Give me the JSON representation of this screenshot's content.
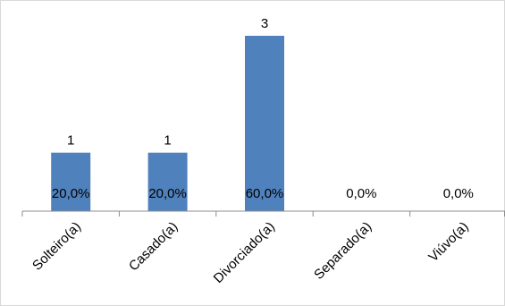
{
  "chart_data": {
    "type": "bar",
    "categories": [
      "Solteiro(a)",
      "Casado(a)",
      "Divorciado(a)",
      "Separado(a)",
      "Viúvo(a)"
    ],
    "values": [
      1,
      1,
      3,
      0,
      0
    ],
    "percent_labels": [
      "20,0%",
      "20,0%",
      "60,0%",
      "0,0%",
      "0,0%"
    ],
    "title": "",
    "xlabel": "",
    "ylabel": "",
    "ylim": [
      0,
      3
    ],
    "grid": false,
    "legend": "none",
    "colors": {
      "bar": "#4f81bd",
      "axis": "#8c8c8c",
      "frame": "#d9d9d9"
    }
  }
}
